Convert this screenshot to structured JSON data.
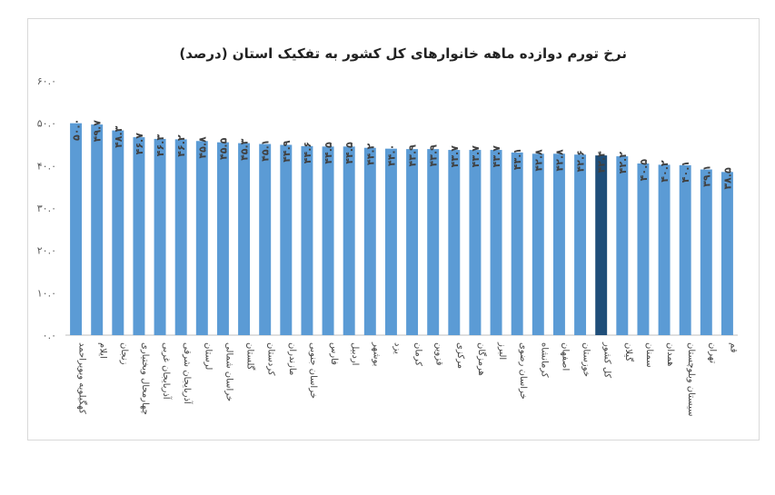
{
  "chart_data": {
    "type": "bar",
    "title": "نرخ تورم دوازده ماهه خانوارهای کل کشور به تفکیک استان (درصد)",
    "xlabel": "",
    "ylabel": "",
    "ylim": [
      0,
      60
    ],
    "yticks": [
      "۰.۰",
      "۱۰.۰",
      "۲۰.۰",
      "۳۰.۰",
      "۴۰.۰",
      "۵۰.۰",
      "۶۰.۰"
    ],
    "yticks_values": [
      0,
      10,
      20,
      30,
      40,
      50,
      60
    ],
    "grid": false,
    "legend": "none",
    "bar_color": "#5b9bd5",
    "highlight_color": "#1f4e79",
    "highlight_category": "کل کشور",
    "categories": [
      "کهگیلویه وبویراحمد",
      "ایلام",
      "زنجان",
      "چهارمحال وبختیاری",
      "آذربایجان غربی",
      "آذربایجان شرقی",
      "لرستان",
      "خراسان شمالی",
      "گلستان",
      "کردستان",
      "مازندران",
      "خراسان جنوبی",
      "فارس",
      "اردبیل",
      "بوشهر",
      "یزد",
      "کرمان",
      "قزوین",
      "مرکزی",
      "هرمزگان",
      "البرز",
      "خراسان رضوی",
      "کرمانشاه",
      "اصفهان",
      "خوزستان",
      "کل کشور",
      "گیلان",
      "سمنان",
      "همدان",
      "سیستان وبلوچستان",
      "تهران",
      "قم"
    ],
    "values": [
      50.0,
      49.7,
      48.3,
      46.7,
      46.3,
      46.2,
      45.8,
      45.5,
      45.3,
      45.1,
      44.9,
      44.6,
      44.5,
      44.5,
      44.2,
      44.0,
      43.9,
      43.9,
      43.7,
      43.7,
      43.7,
      43.1,
      42.8,
      42.8,
      42.6,
      42.4,
      42.2,
      40.5,
      40.2,
      40.1,
      39.1,
      38.5
    ],
    "value_labels": [
      "۵۰.۰",
      "۴۹.۷",
      "۴۸.۳",
      "۴۶.۷",
      "۴۶.۳",
      "۴۶.۲",
      "۴۵.۸",
      "۴۵.۵",
      "۴۵.۳",
      "۴۵.۱",
      "۴۴.۹",
      "۴۴.۶",
      "۴۴.۵",
      "۴۴.۵",
      "۴۴.۲",
      "۴۴.۰",
      "۴۳.۹",
      "۴۳.۹",
      "۴۳.۷",
      "۴۳.۷",
      "۴۳.۷",
      "۴۳.۱",
      "۴۲.۸",
      "۴۲.۸",
      "۴۲.۶",
      "۴۲.۴",
      "۴۲.۲",
      "۴۰.۵",
      "۴۰.۲",
      "۴۰.۱",
      "۳۹.۱",
      "۳۸.۵"
    ]
  }
}
